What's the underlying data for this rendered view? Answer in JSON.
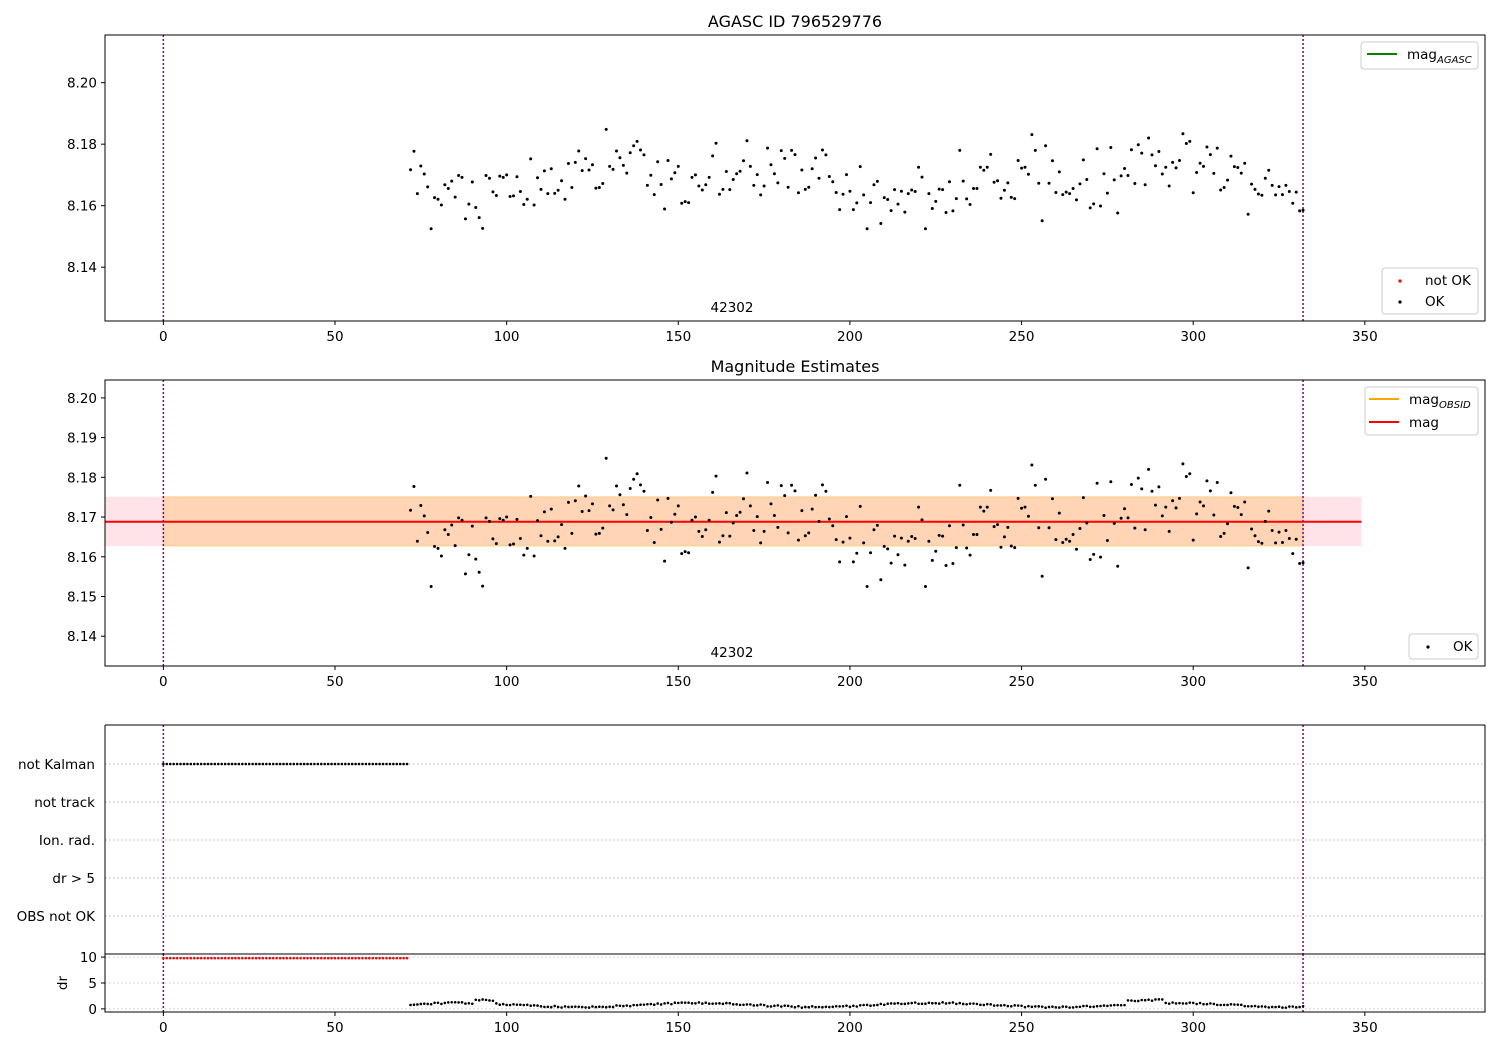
{
  "figure": {
    "width": 1500,
    "height": 1050
  },
  "chart_data": [
    {
      "id": "top",
      "type": "scatter",
      "title": "AGASC ID 796529776",
      "xlim": [
        -17,
        385
      ],
      "ylim": [
        8.1225,
        8.2155
      ],
      "x_ticks": [
        0,
        50,
        100,
        150,
        200,
        250,
        300,
        350
      ],
      "y_ticks": [
        8.14,
        8.16,
        8.18,
        8.2
      ],
      "y_tick_labels": [
        "8.14",
        "8.16",
        "8.18",
        "8.20"
      ],
      "vlines": [
        0,
        332
      ],
      "annotation": {
        "text": "42302",
        "x": 166
      },
      "legend_lines": [
        {
          "label": "mag",
          "sub": "AGASC",
          "color": "#008000"
        }
      ],
      "legend_points": [
        {
          "label": "not OK",
          "color": "#ff0000"
        },
        {
          "label": "OK",
          "color": "#000000"
        }
      ],
      "series": [
        {
          "name": "OK",
          "color": "#000000",
          "x": [],
          "y": []
        }
      ]
    },
    {
      "id": "middle",
      "type": "scatter",
      "title": "Magnitude Estimates",
      "xlim": [
        -17,
        385
      ],
      "ylim": [
        8.1325,
        8.2045
      ],
      "x_ticks": [
        0,
        50,
        100,
        150,
        200,
        250,
        300,
        350
      ],
      "y_ticks": [
        8.14,
        8.15,
        8.16,
        8.17,
        8.18,
        8.19,
        8.2
      ],
      "y_tick_labels": [
        "8.14",
        "8.15",
        "8.16",
        "8.17",
        "8.18",
        "8.19",
        "8.20"
      ],
      "vlines": [
        0,
        332
      ],
      "annotation": {
        "text": "42302",
        "x": 166
      },
      "mean_mag": 8.1688,
      "band_low": 8.1627,
      "band_high": 8.1751,
      "band_x": [
        -17,
        349
      ],
      "obs_band_x": [
        0,
        332
      ],
      "legend_lines": [
        {
          "label": "mag",
          "sub": "OBSID",
          "color": "#ffa500"
        },
        {
          "label": "mag",
          "sub": "",
          "color": "#ff0000"
        }
      ],
      "legend_points": [
        {
          "label": "OK",
          "color": "#000000"
        }
      ],
      "series": [
        {
          "name": "OK",
          "color": "#000000",
          "x": [],
          "y": []
        }
      ]
    },
    {
      "id": "flags",
      "type": "scatter",
      "xlim": [
        -17,
        385
      ],
      "categories": [
        "not Kalman",
        "not track",
        "Ion. rad.",
        "dr > 5",
        "OBS not OK"
      ],
      "vlines": [
        0,
        332
      ],
      "series": [
        {
          "name": "not Kalman",
          "x_range": [
            0,
            71.5
          ]
        }
      ]
    },
    {
      "id": "dr",
      "type": "scatter",
      "ylabel": "dr",
      "xlim": [
        -17,
        385
      ],
      "ylim": [
        -0.6,
        10.6
      ],
      "x_ticks": [
        0,
        50,
        100,
        150,
        200,
        250,
        300,
        350
      ],
      "y_ticks": [
        0,
        5,
        10
      ],
      "vlines": [
        0,
        332
      ],
      "series": [
        {
          "name": "dr (not OK)",
          "color": "#ff0000",
          "x_range": [
            0,
            71.5
          ],
          "y": 9.8
        },
        {
          "name": "dr (OK)",
          "color": "#000000",
          "x_range": [
            72,
            332
          ]
        }
      ]
    }
  ]
}
